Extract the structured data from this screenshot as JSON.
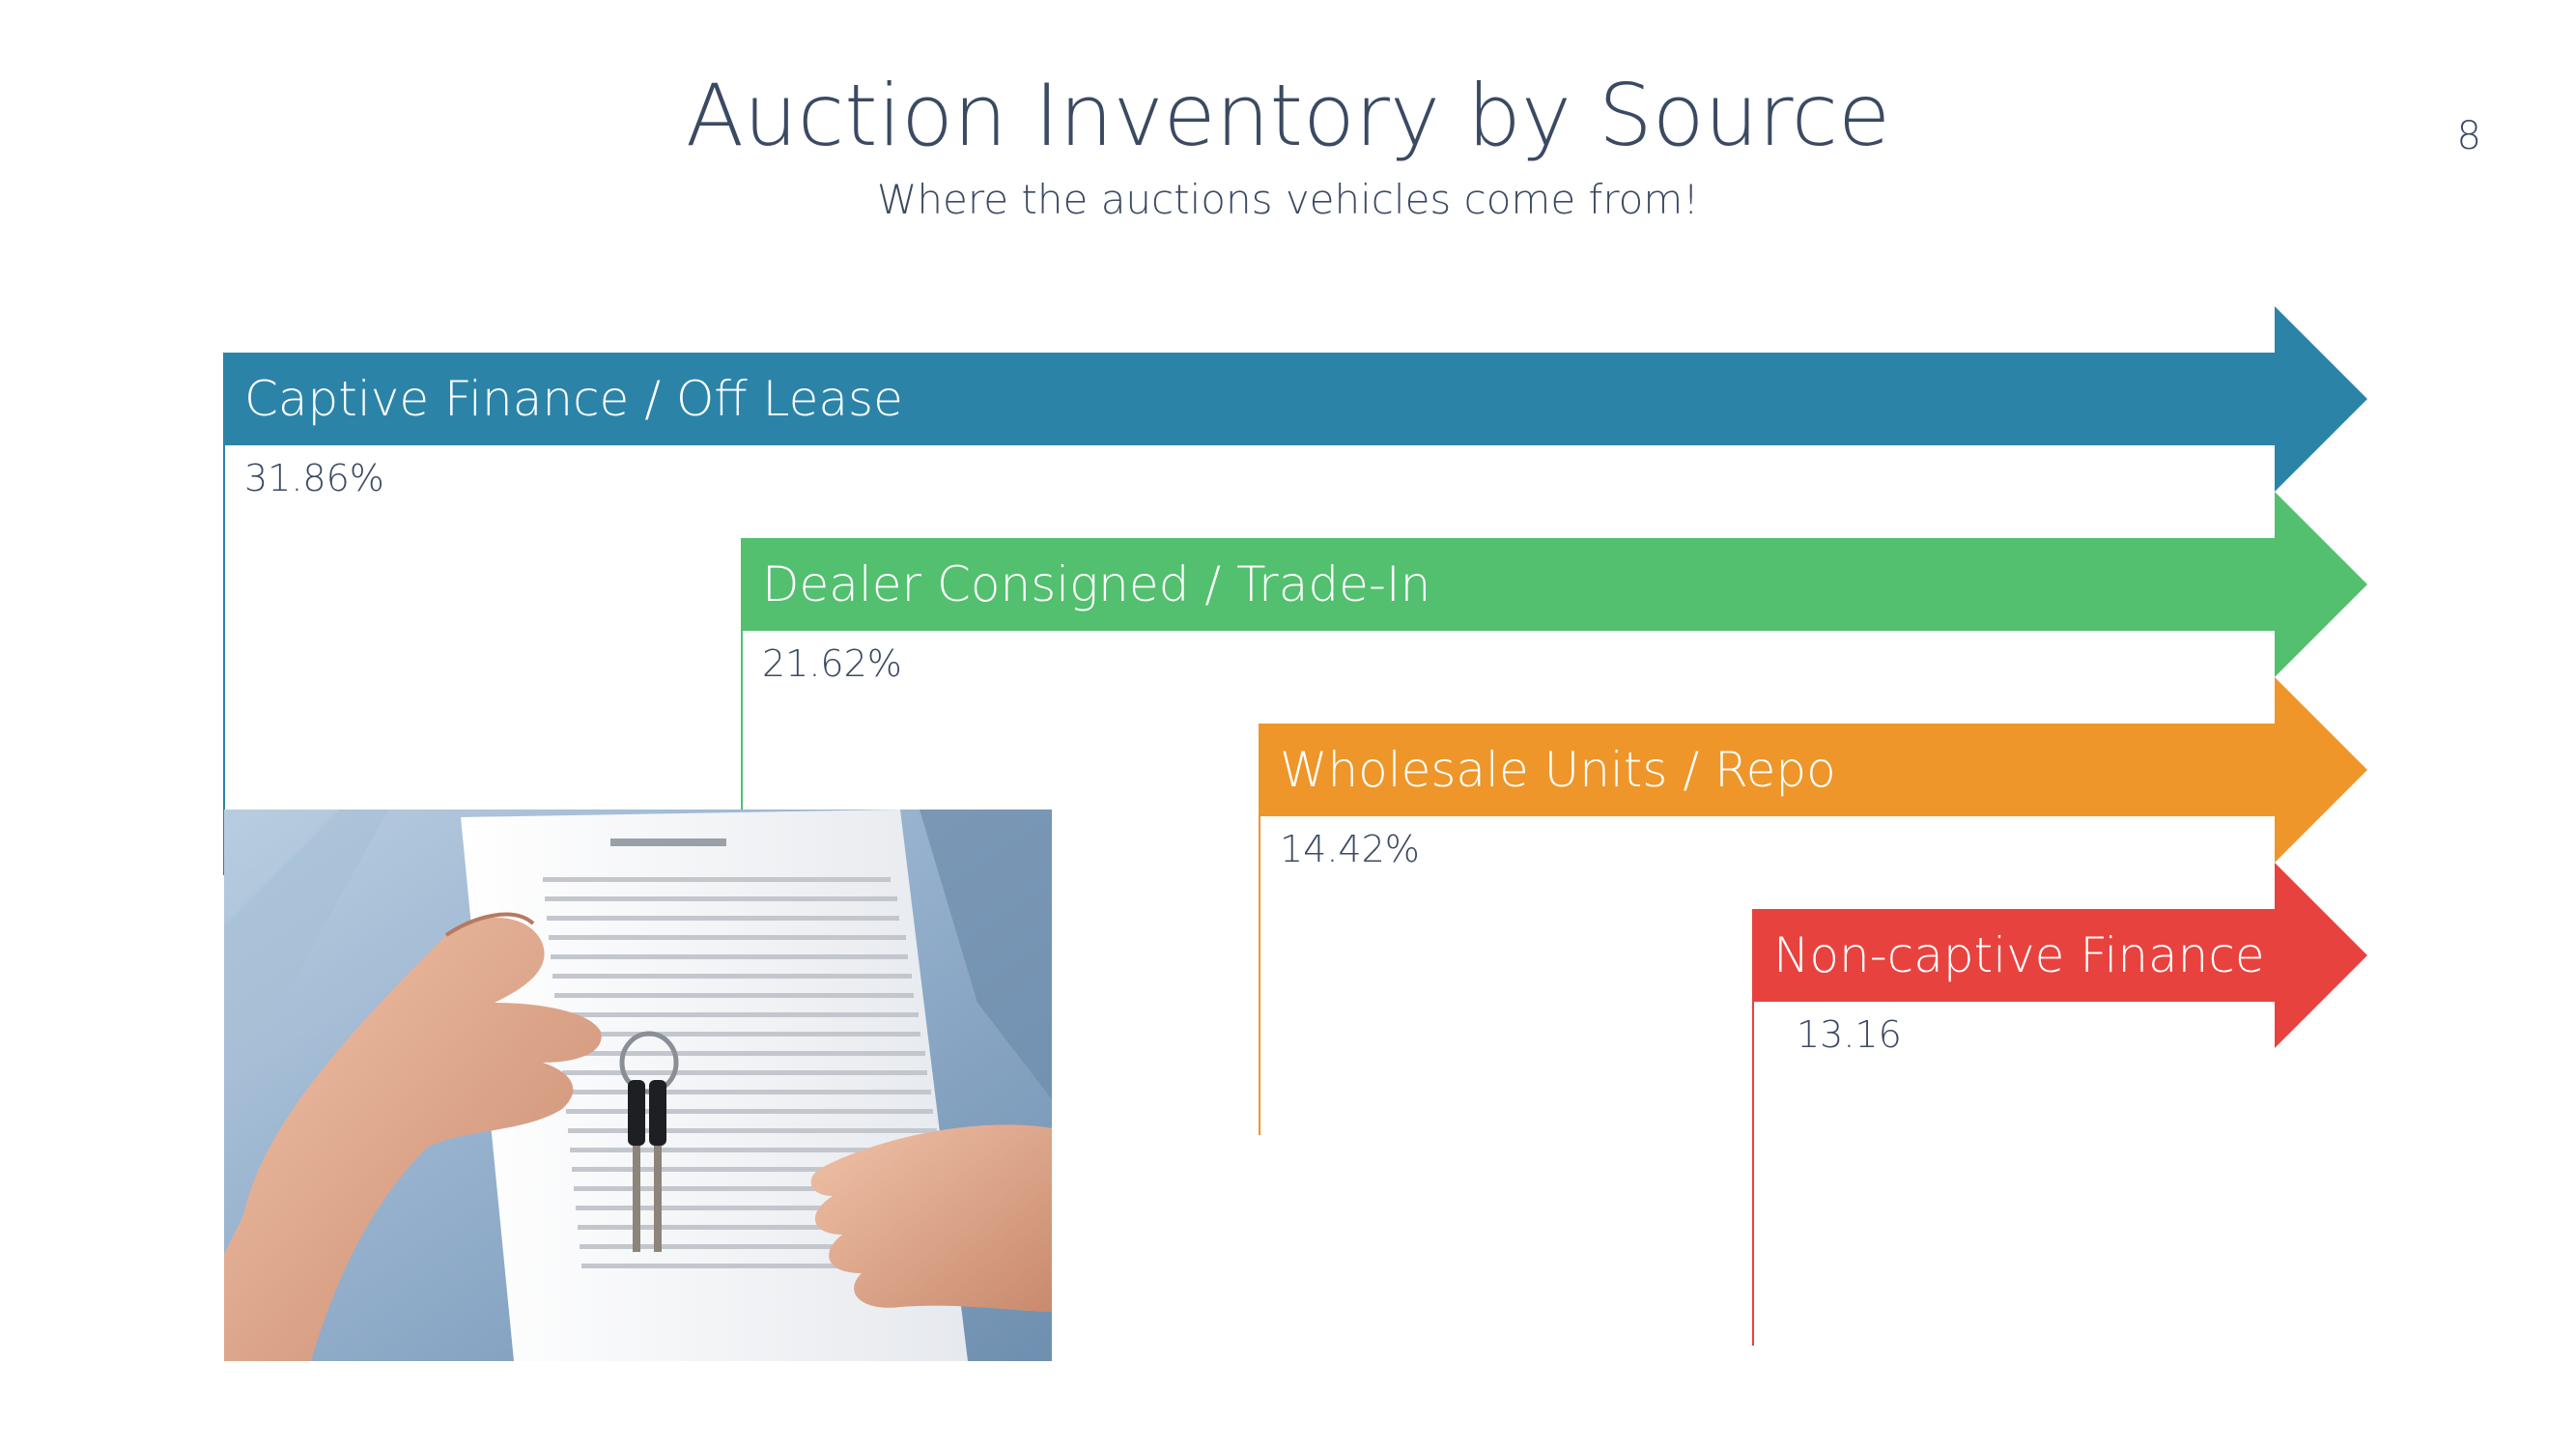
{
  "slide": {
    "title": "Auction Inventory by Source",
    "subtitle": "Where the auctions vehicles come from!",
    "page_number": "8"
  },
  "sources": [
    {
      "label": "Captive Finance / Off Lease",
      "value": "31.86%",
      "color": "#2b84a8"
    },
    {
      "label": "Dealer Consigned / Trade-In",
      "value": "21.62%",
      "color": "#52c06e"
    },
    {
      "label": "Wholesale Units / Repo",
      "value": "14.42%",
      "color": "#ee9629"
    },
    {
      "label": "Non-captive Finance",
      "value": "13.16",
      "color": "#e8423f"
    }
  ],
  "photo": {
    "icon": "hand-holding-keys-with-contract-photo"
  }
}
